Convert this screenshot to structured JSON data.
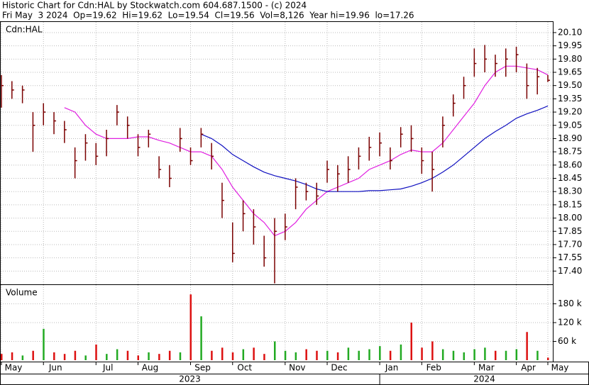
{
  "chart_data": {
    "type": "ohlc",
    "title": "Historic Chart for Cdn:HAL by Stockwatch.com 604.687.1500 - (c) 2024",
    "subtitle": "Fri May  3 2024  Op=19.62  Hi=19.62  Lo=19.54  Cl=19.56  Vol=8,126  Year hi=19.96  lo=17.26",
    "symbol": "Cdn:HAL",
    "categories": [
      "May",
      null,
      null,
      null,
      "Jun",
      null,
      null,
      null,
      null,
      "Jul",
      null,
      null,
      null,
      "Aug",
      null,
      null,
      null,
      null,
      "Sep",
      null,
      null,
      null,
      "Oct",
      null,
      null,
      null,
      null,
      "Nov",
      null,
      null,
      null,
      "Dec",
      null,
      null,
      null,
      null,
      "Jan",
      null,
      null,
      null,
      "Feb",
      null,
      null,
      null,
      null,
      "Mar",
      null,
      null,
      null,
      "Apr",
      null,
      null,
      "May"
    ],
    "years": [
      "2023",
      "2024"
    ],
    "high": [
      19.62,
      19.55,
      19.5,
      19.2,
      19.3,
      19.2,
      19.1,
      18.8,
      18.95,
      18.85,
      19.0,
      19.28,
      19.15,
      18.95,
      19.0,
      18.7,
      18.6,
      19.02,
      18.8,
      19.02,
      18.85,
      18.4,
      17.95,
      18.2,
      18.1,
      17.8,
      18.0,
      18.05,
      18.45,
      18.4,
      18.4,
      18.65,
      18.6,
      18.7,
      18.8,
      18.92,
      18.97,
      18.8,
      19.03,
      19.05,
      18.8,
      18.75,
      19.15,
      19.4,
      19.6,
      19.92,
      19.96,
      19.85,
      19.92,
      19.94,
      19.75,
      19.7,
      19.62
    ],
    "low": [
      19.25,
      19.35,
      19.3,
      18.75,
      19.05,
      18.95,
      18.85,
      18.45,
      18.65,
      18.6,
      18.7,
      19.05,
      18.9,
      18.7,
      18.8,
      18.45,
      18.35,
      18.75,
      18.6,
      18.8,
      18.55,
      18.0,
      17.5,
      17.85,
      17.7,
      17.45,
      17.26,
      17.75,
      18.1,
      18.2,
      18.15,
      18.4,
      18.3,
      18.4,
      18.55,
      18.65,
      18.7,
      18.55,
      18.8,
      18.75,
      18.5,
      18.3,
      18.8,
      19.15,
      19.35,
      19.6,
      19.65,
      19.6,
      19.6,
      19.65,
      19.35,
      19.4,
      19.54
    ],
    "close": [
      19.5,
      19.45,
      19.45,
      19.05,
      19.2,
      19.1,
      19.0,
      18.65,
      18.85,
      18.7,
      18.9,
      19.2,
      19.05,
      18.8,
      18.95,
      18.55,
      18.45,
      18.9,
      18.65,
      18.95,
      18.7,
      18.2,
      17.6,
      18.05,
      17.9,
      17.55,
      17.85,
      17.9,
      18.35,
      18.3,
      18.25,
      18.55,
      18.5,
      18.55,
      18.7,
      18.8,
      18.85,
      18.65,
      18.95,
      18.9,
      18.65,
      18.55,
      19.05,
      19.3,
      19.5,
      19.75,
      19.8,
      19.75,
      19.8,
      19.85,
      19.5,
      19.6,
      19.56
    ],
    "volume": [
      20000,
      25000,
      15000,
      30000,
      100000,
      25000,
      20000,
      30000,
      15000,
      50000,
      20000,
      35000,
      30000,
      15000,
      25000,
      20000,
      30000,
      25000,
      210000,
      140000,
      30000,
      40000,
      25000,
      35000,
      40000,
      20000,
      60000,
      30000,
      25000,
      35000,
      30000,
      30000,
      25000,
      40000,
      30000,
      35000,
      45000,
      30000,
      50000,
      120000,
      40000,
      60000,
      35000,
      30000,
      25000,
      35000,
      40000,
      30000,
      30000,
      35000,
      90000,
      30000,
      8126
    ],
    "moving_averages": [
      {
        "color": "#e020e0",
        "values": [
          null,
          null,
          null,
          null,
          null,
          null,
          19.25,
          19.2,
          19.05,
          18.95,
          18.9,
          18.9,
          18.9,
          18.92,
          18.92,
          18.88,
          18.85,
          18.8,
          18.75,
          18.75,
          18.7,
          18.55,
          18.35,
          18.2,
          18.05,
          17.95,
          17.8,
          17.85,
          17.95,
          18.1,
          18.2,
          18.3,
          18.35,
          18.4,
          18.45,
          18.55,
          18.6,
          18.65,
          18.72,
          18.77,
          18.75,
          18.75,
          18.85,
          19.0,
          19.15,
          19.3,
          19.5,
          19.65,
          19.72,
          19.72,
          19.7,
          19.68,
          19.62
        ]
      },
      {
        "color": "#1010c0",
        "values": [
          null,
          null,
          null,
          null,
          null,
          null,
          null,
          null,
          null,
          null,
          null,
          null,
          null,
          null,
          null,
          null,
          null,
          null,
          null,
          18.95,
          18.9,
          18.82,
          18.72,
          18.65,
          18.58,
          18.52,
          18.48,
          18.45,
          18.42,
          18.38,
          18.33,
          18.3,
          18.3,
          18.3,
          18.3,
          18.31,
          18.31,
          18.32,
          18.33,
          18.36,
          18.4,
          18.45,
          18.52,
          18.6,
          18.7,
          18.8,
          18.9,
          18.98,
          19.05,
          19.13,
          19.18,
          19.22,
          19.27
        ]
      }
    ],
    "bar_color": "#7a0000",
    "up_color": "#22aa22",
    "down_color": "#dd1111",
    "ylim": [
      17.25,
      20.22
    ],
    "yticks": [
      {
        "value": 17.4,
        "label": "17.40"
      },
      17.55,
      {
        "value": 17.7,
        "label": "17.70"
      },
      {
        "value": 17.85,
        "label": "17.85"
      },
      {
        "value": 18.0,
        "label": "18.00"
      },
      18.15,
      {
        "value": 18.3,
        "label": "18.30"
      },
      18.45,
      {
        "value": 18.6,
        "label": "18.60"
      },
      18.75,
      {
        "value": 18.9,
        "label": "18.90"
      },
      19.05,
      {
        "value": 19.2,
        "label": "19.20"
      },
      19.35,
      {
        "value": 19.5,
        "label": "19.50"
      },
      19.65,
      {
        "value": 19.8,
        "label": "19.80"
      },
      19.95,
      {
        "value": 20.1,
        "label": "20.10"
      }
    ],
    "volume_title": "Volume",
    "y2lim": [
      0,
      240000
    ],
    "y2ticks": [
      {
        "value": 60000,
        "label": "60 k"
      },
      {
        "value": 120000,
        "label": "120 k"
      },
      {
        "value": 180000,
        "label": "180 k"
      }
    ],
    "grid": true
  }
}
